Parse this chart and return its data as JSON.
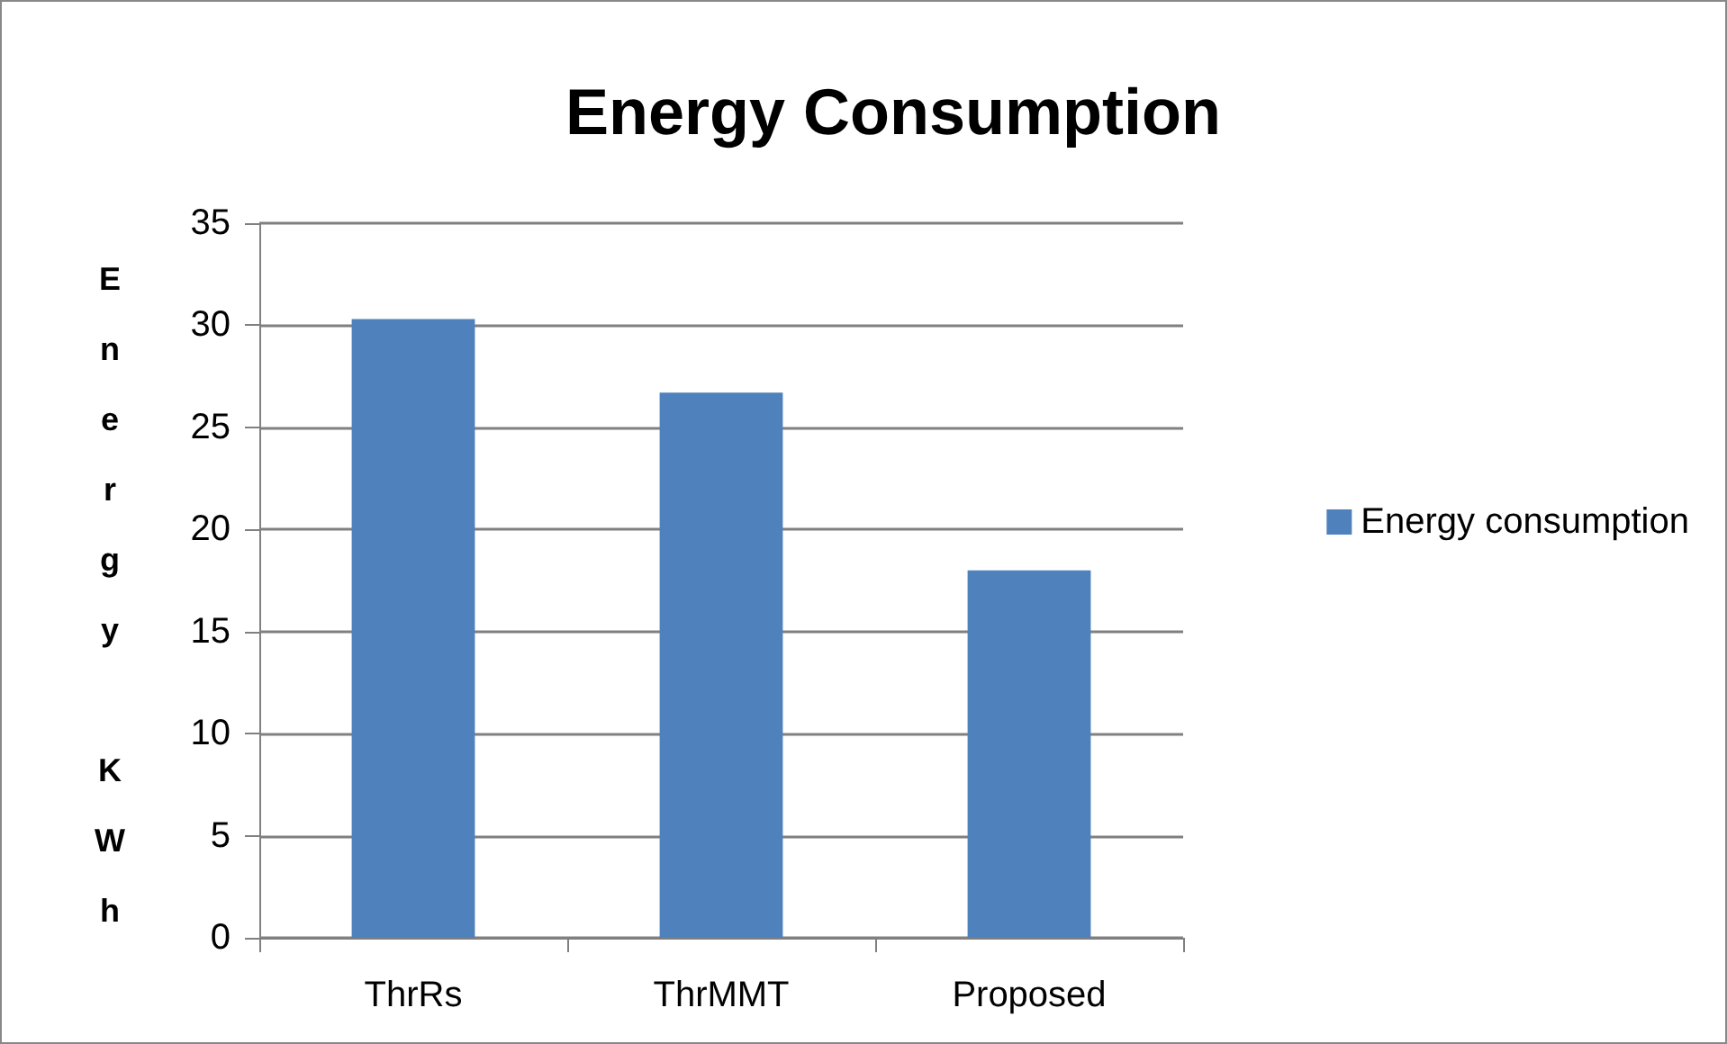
{
  "chart_data": {
    "type": "bar",
    "title": "Energy Consumption",
    "ylabel": "Energy KWh",
    "categories": [
      "ThrRs",
      "ThrMMT",
      "Proposed"
    ],
    "series": [
      {
        "name": "Energy consumption",
        "color": "#4f81bd",
        "values": [
          30.3,
          26.7,
          18.0
        ]
      }
    ],
    "ylim": [
      0,
      35
    ],
    "yticks": [
      0,
      5,
      10,
      15,
      20,
      25,
      30,
      35
    ],
    "grid": "y",
    "legend": "right"
  }
}
